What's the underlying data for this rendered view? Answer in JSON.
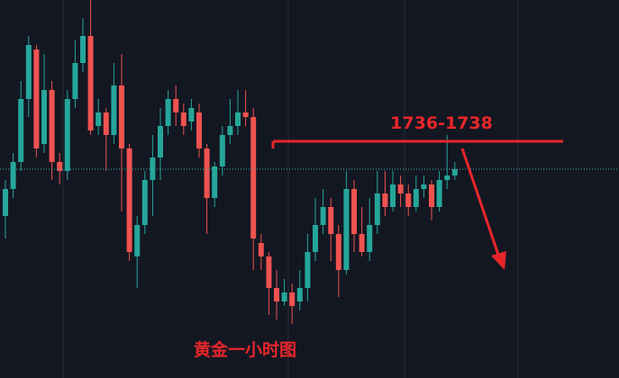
{
  "chart_data": {
    "type": "candlestick",
    "level_label": "1736-1738",
    "caption": "黄金一小时图",
    "ylim": [
      1710,
      1752
    ],
    "level": 1736.3,
    "up_color": "#26a69a",
    "down_color": "#ef5350",
    "open": [
      1728,
      1731,
      1734,
      1741,
      1746.5,
      1736,
      1742,
      1734,
      1733,
      1741,
      1745,
      1748,
      1738,
      1739.5,
      1737,
      1742.5,
      1735.5,
      1723.5,
      1727,
      1732,
      1734.5,
      1738,
      1741,
      1739.5,
      1738.5,
      1739.5,
      1735.5,
      1730,
      1733.5,
      1737,
      1738,
      1739.5,
      1739,
      1725,
      1723.5,
      1720,
      1718.5,
      1719.5,
      1718.5,
      1720,
      1724,
      1727,
      1729,
      1726,
      1722,
      1731,
      1726,
      1724,
      1727,
      1730.5,
      1729,
      1731.5,
      1730.5,
      1729,
      1731,
      1731.5,
      1729,
      1732,
      1732.5
    ],
    "high": [
      1732,
      1735,
      1743,
      1748,
      1747,
      1746,
      1743,
      1735,
      1742,
      1747.5,
      1750,
      1752,
      1741,
      1740,
      1745,
      1746,
      1736,
      1728,
      1733,
      1737,
      1740,
      1742,
      1742.5,
      1740.5,
      1741,
      1740.5,
      1736,
      1734,
      1738,
      1741,
      1742,
      1742,
      1740,
      1726,
      1724,
      1722,
      1721,
      1720.5,
      1722,
      1726,
      1730,
      1731,
      1730,
      1727,
      1733,
      1732,
      1729,
      1730,
      1733,
      1733,
      1733,
      1732.5,
      1731.5,
      1732.5,
      1732.5,
      1732,
      1733,
      1737,
      1734
    ],
    "low": [
      1725.5,
      1730,
      1733,
      1739,
      1734.5,
      1735,
      1732,
      1731.5,
      1732,
      1740,
      1744,
      1737,
      1737,
      1733,
      1736,
      1728.5,
      1723,
      1720,
      1726,
      1728,
      1732,
      1737,
      1738,
      1737,
      1737.5,
      1734.5,
      1726,
      1729,
      1732.5,
      1736,
      1737,
      1738,
      1722,
      1722,
      1717,
      1716.5,
      1718,
      1716,
      1717.5,
      1718.5,
      1723,
      1726,
      1723,
      1719,
      1721.5,
      1724,
      1723.5,
      1723,
      1726,
      1728,
      1728.5,
      1729,
      1728,
      1728.5,
      1730,
      1727.5,
      1728.5,
      1731,
      1732
    ],
    "close": [
      1731,
      1734,
      1741,
      1747,
      1735.5,
      1742,
      1734,
      1733,
      1741,
      1745,
      1748,
      1737.5,
      1739.5,
      1737,
      1742.5,
      1735.5,
      1724,
      1727,
      1732,
      1734.5,
      1738,
      1741,
      1739.5,
      1738,
      1740,
      1735.5,
      1730,
      1733.5,
      1737,
      1738,
      1739.5,
      1739,
      1725.5,
      1723.5,
      1720,
      1718.5,
      1719.5,
      1718,
      1720,
      1724,
      1727,
      1729,
      1726,
      1722,
      1731,
      1726,
      1724,
      1727,
      1730.5,
      1729,
      1731.5,
      1730.5,
      1729,
      1731,
      1731.5,
      1729,
      1732,
      1732.5,
      1733.2
    ]
  }
}
